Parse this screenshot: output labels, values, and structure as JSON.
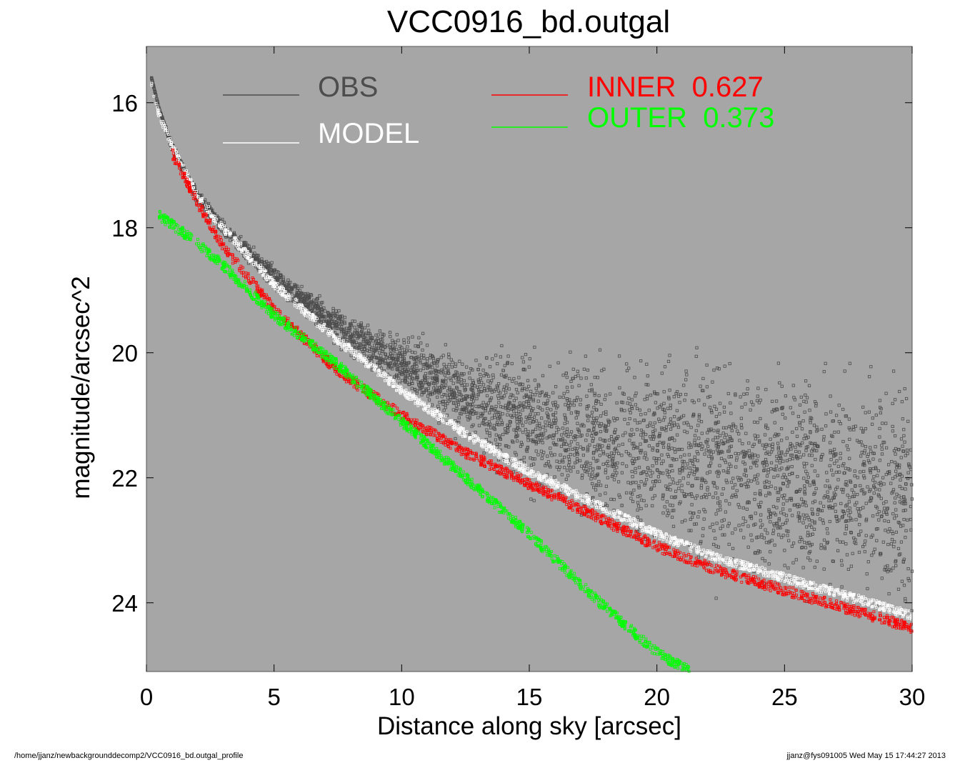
{
  "chart_data": {
    "type": "scatter",
    "title": "VCC0916_bd.outgal",
    "xlabel": "Distance along sky [arcsec]",
    "ylabel": "magnitude/arcsec^2",
    "xlim": [
      0,
      30
    ],
    "ylim": [
      25.1,
      15.1
    ],
    "y_inverted": true,
    "xticks": [
      0,
      5,
      10,
      15,
      20,
      25,
      30
    ],
    "yticks": [
      16,
      18,
      20,
      22,
      24
    ],
    "background_color": "#a6a6a6",
    "grid": false,
    "legend_position": "top",
    "series": [
      {
        "name": "OBS",
        "color": "#4d4d4d",
        "x": [
          0.2,
          0.5,
          1.0,
          2.0,
          3.0,
          5.0,
          7.5,
          10.0,
          12.5,
          15.0,
          17.5,
          20.0,
          22.5,
          25.0,
          27.5,
          30.0
        ],
        "y": [
          15.6,
          16.1,
          16.7,
          17.5,
          18.0,
          18.8,
          19.6,
          20.2,
          20.7,
          21.1,
          21.4,
          21.6,
          21.8,
          22.0,
          22.1,
          22.3
        ],
        "scatter": [
          0.0,
          0.0,
          0.05,
          0.08,
          0.1,
          0.15,
          0.25,
          0.4,
          0.6,
          0.9,
          1.1,
          1.3,
          1.4,
          1.5,
          1.6,
          1.7
        ]
      },
      {
        "name": "MODEL",
        "color": "#ffffff",
        "x": [
          0.2,
          0.5,
          1.0,
          2.0,
          3.0,
          5.0,
          7.5,
          10.0,
          12.5,
          15.0,
          17.5,
          20.0,
          22.5,
          25.0,
          27.5,
          30.0
        ],
        "y": [
          15.7,
          16.2,
          16.7,
          17.5,
          18.0,
          18.9,
          19.8,
          20.6,
          21.3,
          21.9,
          22.4,
          22.9,
          23.3,
          23.6,
          23.9,
          24.2
        ]
      },
      {
        "name": "INNER",
        "value": "0.627",
        "color": "#ff0000",
        "x": [
          1.0,
          1.5,
          2.0,
          3.0,
          4.0,
          5.0,
          7.5,
          10.0,
          12.5,
          15.0,
          17.5,
          20.0,
          22.5,
          25.0,
          27.5,
          30.0
        ],
        "y": [
          16.8,
          17.2,
          17.6,
          18.3,
          18.8,
          19.3,
          20.3,
          21.0,
          21.6,
          22.1,
          22.6,
          23.1,
          23.5,
          23.8,
          24.1,
          24.4
        ]
      },
      {
        "name": "OUTER",
        "value": "0.373",
        "color": "#00ff00",
        "x": [
          0.5,
          1.0,
          2.0,
          3.0,
          5.0,
          7.5,
          10.0,
          12.5,
          15.0,
          17.5,
          20.0,
          21.3
        ],
        "y": [
          17.8,
          17.95,
          18.25,
          18.6,
          19.4,
          20.2,
          21.1,
          22.0,
          22.9,
          23.9,
          24.8,
          25.1
        ]
      }
    ]
  },
  "footer": {
    "left": "/home/jjanz/newbackgrounddecomp2/VCC0916_bd.outgal_profile",
    "right": "jjanz@fys091005  Wed May 15 17:44:27 2013"
  }
}
